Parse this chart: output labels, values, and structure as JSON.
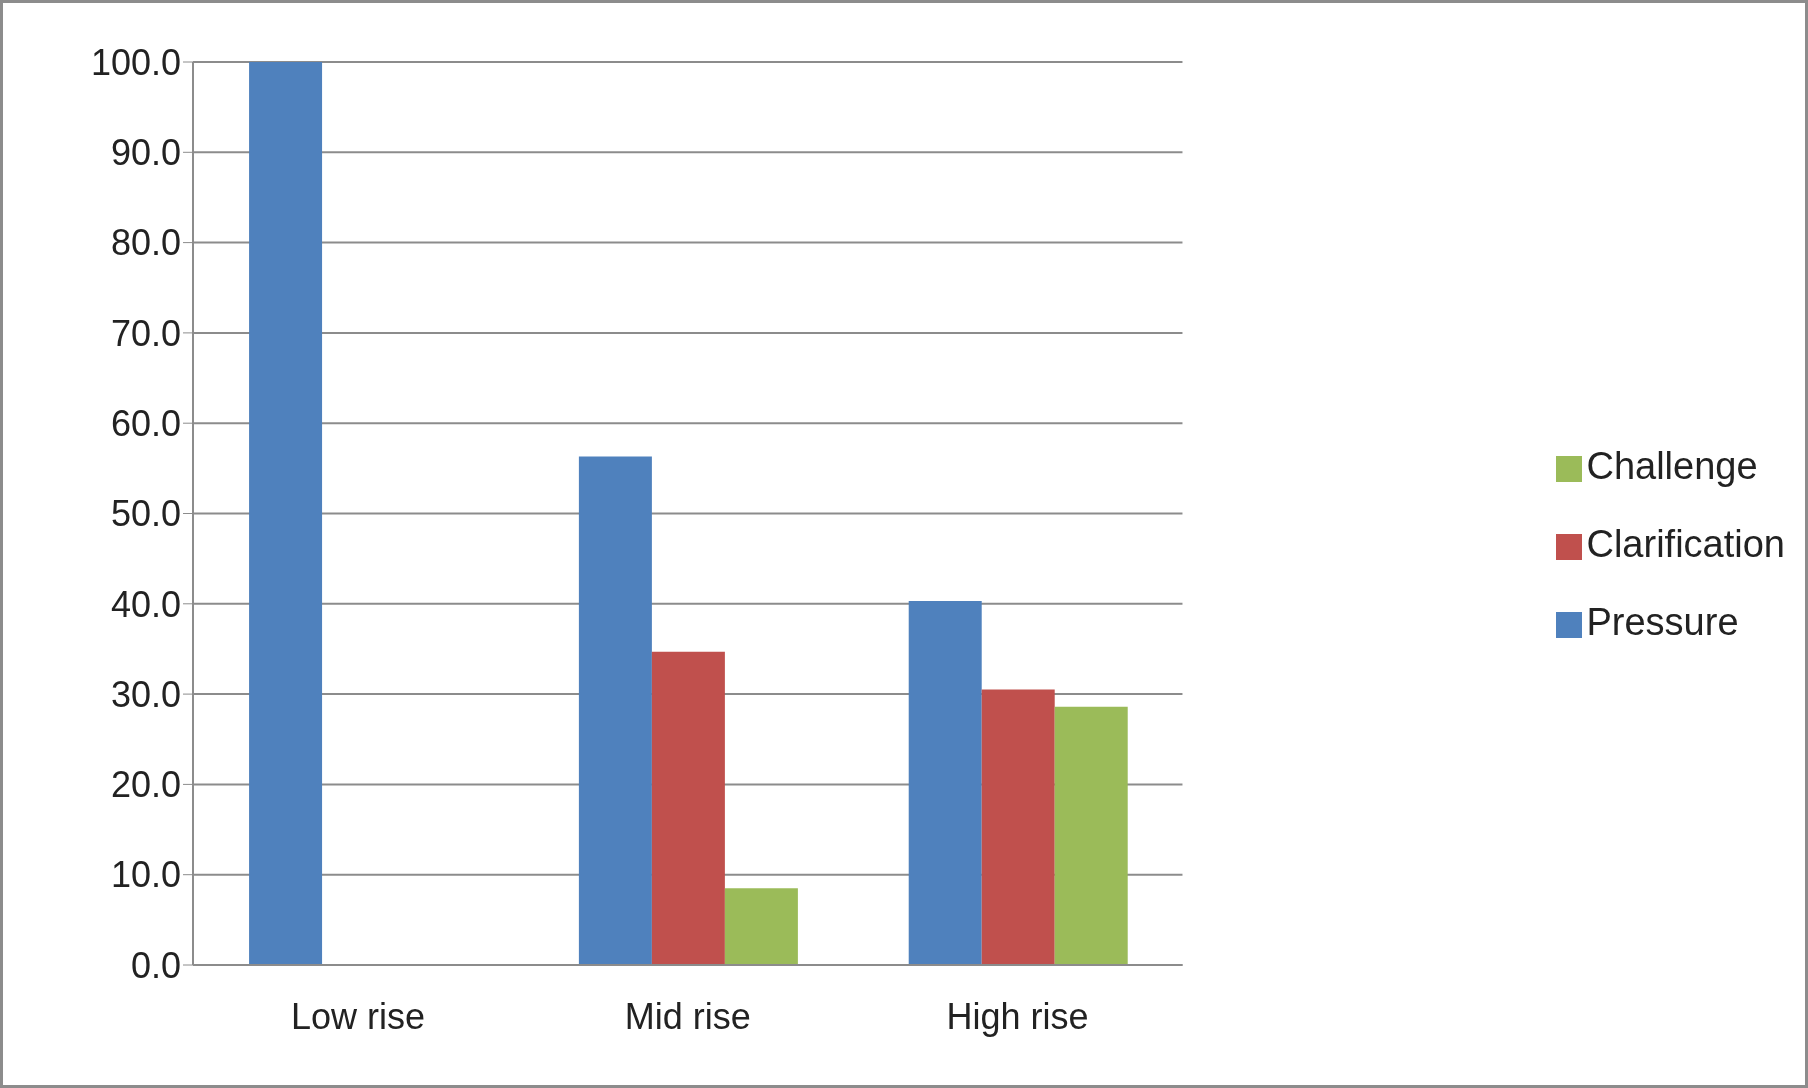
{
  "chart_data": {
    "type": "bar",
    "categories": [
      "Low rise",
      "Mid rise",
      "High rise"
    ],
    "series": [
      {
        "name": "Pressure",
        "color": "#4f81bd",
        "values": [
          100.0,
          56.3,
          40.3
        ]
      },
      {
        "name": "Clarification",
        "color": "#c0504d",
        "values": [
          0,
          34.7,
          30.5
        ]
      },
      {
        "name": "Challenge",
        "color": "#9bbb59",
        "values": [
          0,
          8.5,
          28.6
        ]
      }
    ],
    "ylim": [
      0,
      100
    ],
    "yticks": [
      {
        "value": 0,
        "label": "0.0"
      },
      {
        "value": 10,
        "label": "10.0"
      },
      {
        "value": 20,
        "label": "20.0"
      },
      {
        "value": 30,
        "label": "30.0"
      },
      {
        "value": 40,
        "label": "40.0"
      },
      {
        "value": 50,
        "label": "50.0"
      },
      {
        "value": 60,
        "label": "60.0"
      },
      {
        "value": 70,
        "label": "70.0"
      },
      {
        "value": 80,
        "label": "80.0"
      },
      {
        "value": 90,
        "label": "90.0"
      },
      {
        "value": 100,
        "label": "100.0"
      }
    ],
    "grid": "y",
    "legend": "right"
  }
}
